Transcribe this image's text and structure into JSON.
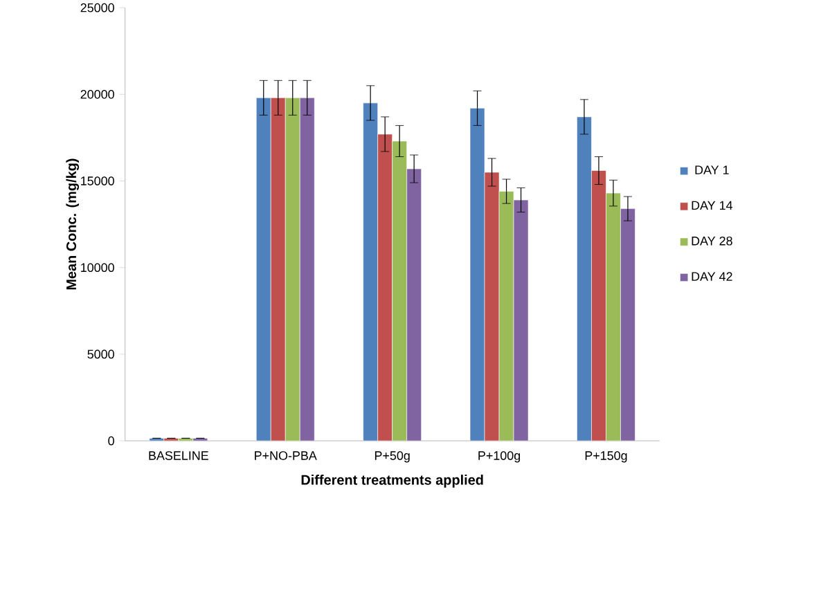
{
  "chart_data": {
    "type": "bar",
    "xlabel": "Different treatments applied",
    "ylabel": "Mean Conc. (mg/kg)",
    "categories": [
      "BASELINE",
      "P+NO-PBA",
      "P+50g",
      "P+100g",
      "P+150g"
    ],
    "series": [
      {
        "name": "DAY 1",
        "color": "#4f81bd",
        "values": [
          150,
          19800,
          19500,
          19200,
          18700
        ],
        "errors": [
          null,
          1000,
          1000,
          1000,
          1000
        ]
      },
      {
        "name": "DAY 14",
        "color": "#c0504d",
        "values": [
          150,
          19800,
          17700,
          15500,
          15600
        ],
        "errors": [
          null,
          1000,
          1000,
          800,
          800
        ]
      },
      {
        "name": "DAY 28",
        "color": "#9bbb59",
        "values": [
          150,
          19800,
          17300,
          14400,
          14300
        ],
        "errors": [
          null,
          1000,
          900,
          700,
          750
        ]
      },
      {
        "name": "DAY 42",
        "color": "#8064a2",
        "values": [
          150,
          19800,
          15700,
          13900,
          13400
        ],
        "errors": [
          null,
          1000,
          800,
          700,
          700
        ]
      }
    ],
    "ylim": [
      0,
      25000
    ],
    "yticks": [
      0,
      5000,
      10000,
      15000,
      20000,
      25000
    ],
    "grid": false,
    "legend": "right"
  }
}
